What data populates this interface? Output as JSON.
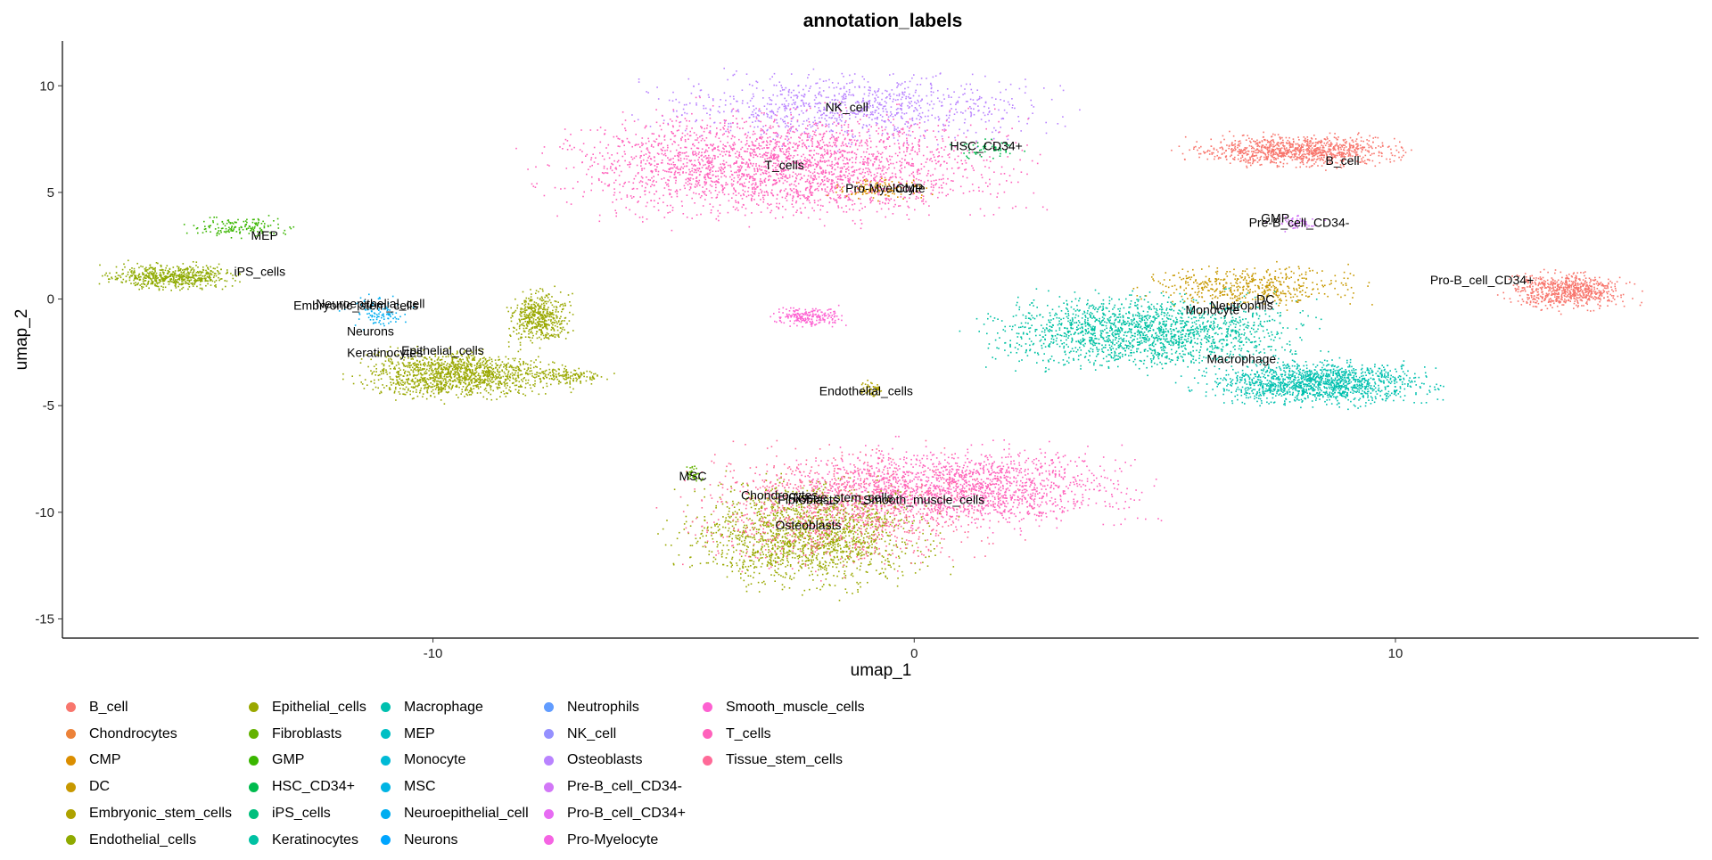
{
  "chart_data": {
    "type": "scatter",
    "title": "annotation_labels",
    "xlabel": "umap_1",
    "ylabel": "umap_2",
    "xlim": [
      -17.7,
      16.3
    ],
    "ylim": [
      -15.9,
      12.1
    ],
    "xticks": [
      -10,
      0,
      10
    ],
    "yticks": [
      -15,
      -10,
      -5,
      0,
      5,
      10
    ],
    "grid": false,
    "legend_position": "bottom",
    "series": [
      {
        "name": "B_cell",
        "color": "#F8766D"
      },
      {
        "name": "Chondrocytes",
        "color": "#EC8239"
      },
      {
        "name": "CMP",
        "color": "#DB8E00"
      },
      {
        "name": "DC",
        "color": "#C79800"
      },
      {
        "name": "Embryonic_stem_cells",
        "color": "#AEA200"
      },
      {
        "name": "Endothelial_cells",
        "color": "#8FAA00"
      },
      {
        "name": "Epithelial_cells",
        "color": "#64B200"
      },
      {
        "name": "Fibroblasts",
        "color": "#00B81B"
      },
      {
        "name": "GMP",
        "color": "#00BD5C"
      },
      {
        "name": "HSC_CD34+",
        "color": "#00C08B"
      },
      {
        "name": "iPS_cells",
        "color": "#00C1B2"
      },
      {
        "name": "Keratinocytes",
        "color": "#00BFD4"
      },
      {
        "name": "Macrophage",
        "color": "#00BAF2"
      },
      {
        "name": "MEP",
        "color": "#00B0F6"
      },
      {
        "name": "Monocyte",
        "color": "#00A5FF"
      },
      {
        "name": "MSC",
        "color": "#7997FF"
      },
      {
        "name": "Neuroepithelial_cell",
        "color": "#9F8CFF"
      },
      {
        "name": "Neurons",
        "color": "#C77CFF"
      },
      {
        "name": "Neutrophils",
        "color": "#E76BF3"
      },
      {
        "name": "NK_cell",
        "color": "#FA62DB"
      },
      {
        "name": "Osteoblasts",
        "color": "#FF62BC"
      },
      {
        "name": "Pre-B_cell_CD34-",
        "color": "#FF6A98"
      },
      {
        "name": "Pro-B_cell_CD34+",
        "color": "#F8766D"
      },
      {
        "name": "Pro-Myelocyte",
        "color": "#F564E3"
      },
      {
        "name": "Smooth_muscle_cells",
        "color": "#F765C7"
      },
      {
        "name": "T_cells",
        "color": "#FF61A0"
      },
      {
        "name": "Tissue_stem_cells",
        "color": "#F36B7D"
      }
    ],
    "legend": [
      {
        "name": "B_cell",
        "color": "#F8766D"
      },
      {
        "name": "Chondrocytes",
        "color": "#EC8239"
      },
      {
        "name": "CMP",
        "color": "#DB8E00"
      },
      {
        "name": "DC",
        "color": "#C79800"
      },
      {
        "name": "Embryonic_stem_cells",
        "color": "#AEA200"
      },
      {
        "name": "Endothelial_cells",
        "color": "#8FAA00"
      },
      {
        "name": "Epithelial_cells",
        "color": "#9AA800"
      },
      {
        "name": "Fibroblasts",
        "color": "#64B200"
      },
      {
        "name": "GMP",
        "color": "#3AB600"
      },
      {
        "name": "HSC_CD34+",
        "color": "#00BB4E"
      },
      {
        "name": "iPS_cells",
        "color": "#00BF7D"
      },
      {
        "name": "Keratinocytes",
        "color": "#00C1A3"
      },
      {
        "name": "Macrophage",
        "color": "#00C0AF"
      },
      {
        "name": "MEP",
        "color": "#00BFC4"
      },
      {
        "name": "Monocyte",
        "color": "#00BAD6"
      },
      {
        "name": "MSC",
        "color": "#00B4E4"
      },
      {
        "name": "Neuroepithelial_cell",
        "color": "#00ADF0"
      },
      {
        "name": "Neurons",
        "color": "#00A5FF"
      },
      {
        "name": "Neutrophils",
        "color": "#619CFF"
      },
      {
        "name": "NK_cell",
        "color": "#9590FF"
      },
      {
        "name": "Osteoblasts",
        "color": "#B983FF"
      },
      {
        "name": "Pre-B_cell_CD34-",
        "color": "#D277F7"
      },
      {
        "name": "Pro-B_cell_CD34+",
        "color": "#E76BF3"
      },
      {
        "name": "Pro-Myelocyte",
        "color": "#F564E3"
      },
      {
        "name": "Smooth_muscle_cells",
        "color": "#FD61D1"
      },
      {
        "name": "T_cells",
        "color": "#FF62BC"
      },
      {
        "name": "Tissue_stem_cells",
        "color": "#FF6A98"
      }
    ],
    "clusters": [
      {
        "label": "NK_cell",
        "x": -1.3,
        "y": 9.0,
        "sx": 3.2,
        "sy": 1.3,
        "n": 900,
        "color": "#B983FF"
      },
      {
        "label": "T_cells",
        "x": -2.7,
        "y": 6.3,
        "sx": 3.7,
        "sy": 2.0,
        "n": 2600,
        "color": "#FF62BC"
      },
      {
        "label": "HSC_CD34+",
        "x": 1.5,
        "y": 7.1,
        "sx": 0.6,
        "sy": 0.4,
        "n": 60,
        "color": "#00BB4E"
      },
      {
        "label": "Pro-Myelocyte",
        "x": -0.7,
        "y": 5.2,
        "sx": 0.9,
        "sy": 0.4,
        "n": 120,
        "color": "#DB8E00"
      },
      {
        "label": "B_cell",
        "x": 8.0,
        "y": 7.0,
        "sx": 1.7,
        "sy": 0.6,
        "n": 1000,
        "color": "#F8766D"
      },
      {
        "label": "Pre-B_cell_CD34-",
        "x": 7.9,
        "y": 3.6,
        "sx": 0.4,
        "sy": 0.3,
        "n": 60,
        "color": "#D277F7"
      },
      {
        "label": "Pro-B_cell_CD34+",
        "x": 13.6,
        "y": 0.4,
        "sx": 1.0,
        "sy": 0.7,
        "n": 700,
        "color": "#F8766D"
      },
      {
        "label": "Monocyte",
        "x": 4.8,
        "y": -1.5,
        "sx": 2.6,
        "sy": 1.4,
        "n": 1800,
        "color": "#00C1A3"
      },
      {
        "label": "Neutrophils",
        "x": 7.0,
        "y": 0.6,
        "sx": 1.7,
        "sy": 0.8,
        "n": 500,
        "color": "#C79800"
      },
      {
        "label": "Macrophage",
        "x": 8.4,
        "y": -3.9,
        "sx": 1.9,
        "sy": 0.8,
        "n": 1400,
        "color": "#00C0AF"
      },
      {
        "label": "MEP",
        "x": -14.0,
        "y": 3.4,
        "sx": 0.8,
        "sy": 0.4,
        "n": 150,
        "color": "#3AB600"
      },
      {
        "label": "iPS_cells",
        "x": -15.4,
        "y": 1.1,
        "sx": 1.1,
        "sy": 0.5,
        "n": 600,
        "color": "#8FAA00"
      },
      {
        "label": "Neuroepithelial_cell",
        "x": -11.2,
        "y": -0.6,
        "sx": 0.5,
        "sy": 0.6,
        "n": 100,
        "color": "#00ADF0"
      },
      {
        "label": "Epithelial_cells",
        "x": -9.5,
        "y": -3.5,
        "sx": 1.6,
        "sy": 0.9,
        "n": 1300,
        "color": "#9AA800"
      },
      {
        "label": "Epithelial_cells",
        "x": -7.8,
        "y": -0.8,
        "sx": 0.5,
        "sy": 1.0,
        "n": 500,
        "color": "#9AA800"
      },
      {
        "label": "Epithelial_cells",
        "x": -7.2,
        "y": -3.6,
        "sx": 0.7,
        "sy": 0.3,
        "n": 150,
        "color": "#9AA800"
      },
      {
        "label": "Neurons",
        "x": -2.2,
        "y": -0.8,
        "sx": 0.6,
        "sy": 0.4,
        "n": 200,
        "color": "#FD61D1"
      },
      {
        "label": "Endothelial_cells",
        "x": -0.9,
        "y": -4.2,
        "sx": 0.2,
        "sy": 0.3,
        "n": 60,
        "color": "#AEA200"
      },
      {
        "label": "Fibroblasts",
        "x": 1.0,
        "y": -8.8,
        "sx": 2.8,
        "sy": 1.5,
        "n": 1700,
        "color": "#FF62BC"
      },
      {
        "label": "Chondrocytes",
        "x": -2.2,
        "y": -11.0,
        "sx": 2.0,
        "sy": 2.0,
        "n": 1700,
        "color": "#9AA800"
      },
      {
        "label": "Osteoblasts",
        "x": -1.5,
        "y": -9.8,
        "sx": 2.6,
        "sy": 2.2,
        "n": 1100,
        "color": "#FF6A98"
      },
      {
        "label": "MSC",
        "x": -4.6,
        "y": -8.2,
        "sx": 0.2,
        "sy": 0.3,
        "n": 40,
        "color": "#64B200"
      }
    ],
    "annotations": [
      {
        "text": "NK_cell",
        "x": -1.4,
        "y": 9.0
      },
      {
        "text": "HSC_CD34+",
        "x": 1.5,
        "y": 7.2
      },
      {
        "text": "T_cells",
        "x": -2.7,
        "y": 6.3
      },
      {
        "text": "Pro-Myelocyte",
        "x": -0.6,
        "y": 5.2
      },
      {
        "text": "CMP",
        "x": -0.1,
        "y": 5.2
      },
      {
        "text": "B_cell",
        "x": 8.9,
        "y": 6.5
      },
      {
        "text": "GMP",
        "x": 7.5,
        "y": 3.8
      },
      {
        "text": "Pre-B_cell_CD34-",
        "x": 8.0,
        "y": 3.6
      },
      {
        "text": "Pro-B_cell_CD34+",
        "x": 11.8,
        "y": 0.9
      },
      {
        "text": "DC",
        "x": 7.3,
        "y": 0.0
      },
      {
        "text": "Neutrophils",
        "x": 6.8,
        "y": -0.3
      },
      {
        "text": "Monocyte",
        "x": 6.2,
        "y": -0.5
      },
      {
        "text": "Macrophage",
        "x": 6.8,
        "y": -2.8
      },
      {
        "text": "MEP",
        "x": -13.5,
        "y": 3.0
      },
      {
        "text": "iPS_cells",
        "x": -13.6,
        "y": 1.3
      },
      {
        "text": "Neuroepithelial_cell",
        "x": -11.3,
        "y": -0.2
      },
      {
        "text": "Embryonic_stem_cells",
        "x": -11.6,
        "y": -0.3
      },
      {
        "text": "Neurons",
        "x": -11.3,
        "y": -1.5
      },
      {
        "text": "Keratinocytes",
        "x": -11.0,
        "y": -2.5
      },
      {
        "text": "Epithelial_cells",
        "x": -9.8,
        "y": -2.4
      },
      {
        "text": "Endothelial_cells",
        "x": -1.0,
        "y": -4.3
      },
      {
        "text": "MSC",
        "x": -4.6,
        "y": -8.3
      },
      {
        "text": "Chondrocytes",
        "x": -2.8,
        "y": -9.2
      },
      {
        "text": "Tissue_stem_cells",
        "x": -1.5,
        "y": -9.3
      },
      {
        "text": "Fibroblasts",
        "x": -2.2,
        "y": -9.4
      },
      {
        "text": "Smooth_muscle_cells",
        "x": 0.2,
        "y": -9.4
      },
      {
        "text": "Osteoblasts",
        "x": -2.2,
        "y": -10.6
      }
    ]
  }
}
